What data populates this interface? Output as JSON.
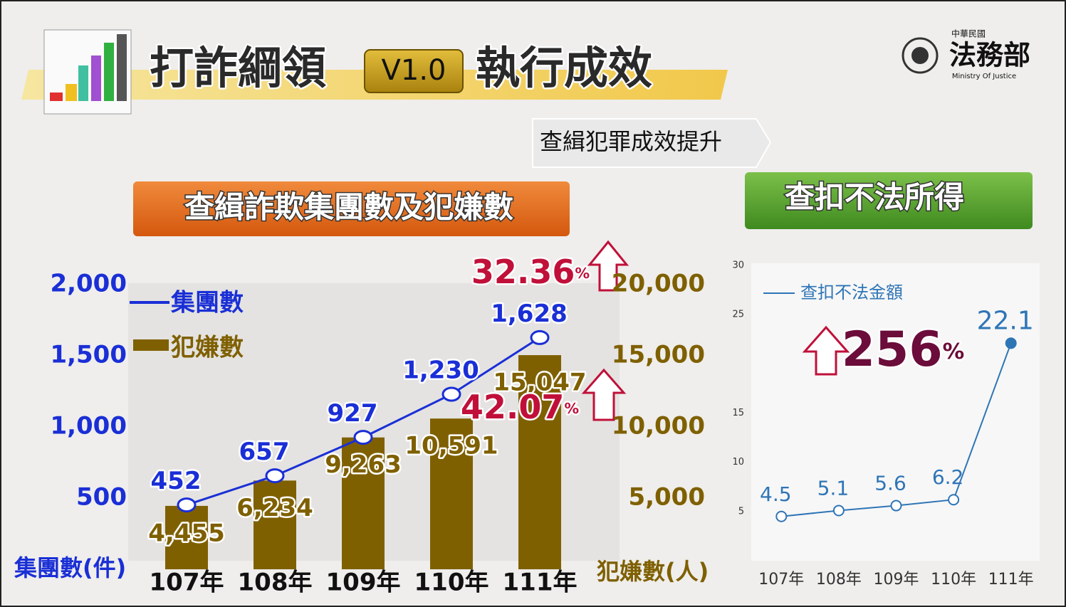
{
  "header": {
    "title_left": "打詐綱領",
    "version": "V1.0",
    "title_right": "執行成效",
    "org_small": "中華民國",
    "org_name": "法務部",
    "org_en": "Ministry Of Justice",
    "subtitle": "查緝犯罪成效提升"
  },
  "chart_data": [
    {
      "type": "combo",
      "title": "查緝詐欺集團數及犯嫌數",
      "categories": [
        "107年",
        "108年",
        "109年",
        "110年",
        "111年"
      ],
      "series": [
        {
          "name": "集團數",
          "type": "line",
          "color": "#1a2fd6",
          "values": [
            452,
            657,
            927,
            1230,
            1628
          ],
          "value_labels": [
            "452",
            "657",
            "927",
            "1,230",
            "1,628"
          ]
        },
        {
          "name": "犯嫌數",
          "type": "bar",
          "axis": "y2",
          "color": "#7f6000",
          "values": [
            4455,
            6234,
            9263,
            10591,
            15047
          ],
          "value_labels": [
            "4,455",
            "6,234",
            "9,263",
            "10,591",
            "15,047"
          ]
        }
      ],
      "ylim": [
        0,
        2000
      ],
      "yticks": [
        {
          "value": 500,
          "label": "500"
        },
        {
          "value": 1000,
          "label": "1,000"
        },
        {
          "value": 1500,
          "label": "1,500"
        },
        {
          "value": 2000,
          "label": "2,000"
        }
      ],
      "y2lim": [
        0,
        20000
      ],
      "y2ticks": [
        {
          "value": 5000,
          "label": "5,000"
        },
        {
          "value": 10000,
          "label": "10,000"
        },
        {
          "value": 15000,
          "label": "15,000"
        },
        {
          "value": 20000,
          "label": "20,000"
        }
      ],
      "y_label": "集團數(件)",
      "y2_label": "犯嫌數(人)",
      "annotations": [
        {
          "text": "32.36",
          "unit": "%"
        },
        {
          "text": "42.07",
          "unit": "%"
        }
      ]
    },
    {
      "type": "line",
      "title": "查扣不法所得",
      "categories": [
        "107年",
        "108年",
        "109年",
        "110年",
        "111年"
      ],
      "series": [
        {
          "name": "查扣不法金額",
          "color": "#2e75b6",
          "values": [
            4.5,
            5.1,
            5.6,
            6.2,
            22.1
          ]
        }
      ],
      "ylim": [
        0,
        30
      ],
      "yticks": [
        5,
        10,
        15,
        25,
        30
      ],
      "annotations": [
        {
          "text": "256",
          "unit": "%"
        }
      ]
    }
  ]
}
